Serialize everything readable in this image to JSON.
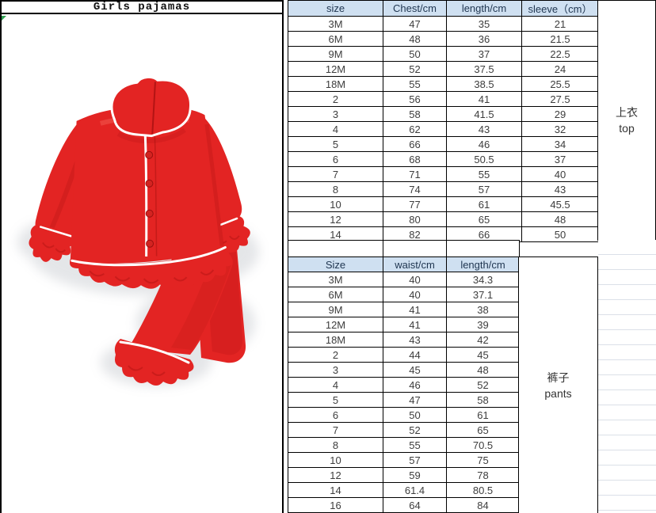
{
  "window": {
    "title": "Girls pajamas"
  },
  "image_panel": {
    "alt": "red girls pajama set: long-sleeve button-up ruffled top and ruffled pants"
  },
  "top_table": {
    "headers": [
      "size",
      "Chest/cm",
      "length/cm",
      "sleeve（cm）"
    ],
    "rows": [
      [
        "3M",
        "47",
        "35",
        "21"
      ],
      [
        "6M",
        "48",
        "36",
        "21.5"
      ],
      [
        "9M",
        "50",
        "37",
        "22.5"
      ],
      [
        "12M",
        "52",
        "37.5",
        "24"
      ],
      [
        "18M",
        "55",
        "38.5",
        "25.5"
      ],
      [
        "2",
        "56",
        "41",
        "27.5"
      ],
      [
        "3",
        "58",
        "41.5",
        "29"
      ],
      [
        "4",
        "62",
        "43",
        "32"
      ],
      [
        "5",
        "66",
        "46",
        "34"
      ],
      [
        "6",
        "68",
        "50.5",
        "37"
      ],
      [
        "7",
        "71",
        "55",
        "40"
      ],
      [
        "8",
        "74",
        "57",
        "43"
      ],
      [
        "10",
        "77",
        "61",
        "45.5"
      ],
      [
        "12",
        "80",
        "65",
        "48"
      ],
      [
        "14",
        "82",
        "66",
        "50"
      ]
    ],
    "side_label": {
      "zh": "上衣",
      "en": "top"
    }
  },
  "bottom_table": {
    "headers": [
      "Size",
      "waist/cm",
      "length/cm"
    ],
    "rows": [
      [
        "3M",
        "40",
        "34.3"
      ],
      [
        "6M",
        "40",
        "37.1"
      ],
      [
        "9M",
        "41",
        "38"
      ],
      [
        "12M",
        "41",
        "39"
      ],
      [
        "18M",
        "43",
        "42"
      ],
      [
        "2",
        "44",
        "45"
      ],
      [
        "3",
        "45",
        "48"
      ],
      [
        "4",
        "46",
        "52"
      ],
      [
        "5",
        "47",
        "58"
      ],
      [
        "6",
        "50",
        "61"
      ],
      [
        "7",
        "52",
        "65"
      ],
      [
        "8",
        "55",
        "70.5"
      ],
      [
        "10",
        "57",
        "75"
      ],
      [
        "12",
        "59",
        "78"
      ],
      [
        "14",
        "61.4",
        "80.5"
      ],
      [
        "16",
        "64",
        "84"
      ]
    ],
    "side_label": {
      "zh": "裤子",
      "en": "pants"
    }
  },
  "colors": {
    "header_bg": "#cfe0f1",
    "header_text": "#1f3550",
    "cell_text": "#3d3d3d",
    "table_border": "#000000",
    "gridline": "#dbe0e8",
    "corner_marker_green": "#2e9e4f",
    "pajama_red": "#e32423",
    "piping_white": "#ffffff"
  }
}
